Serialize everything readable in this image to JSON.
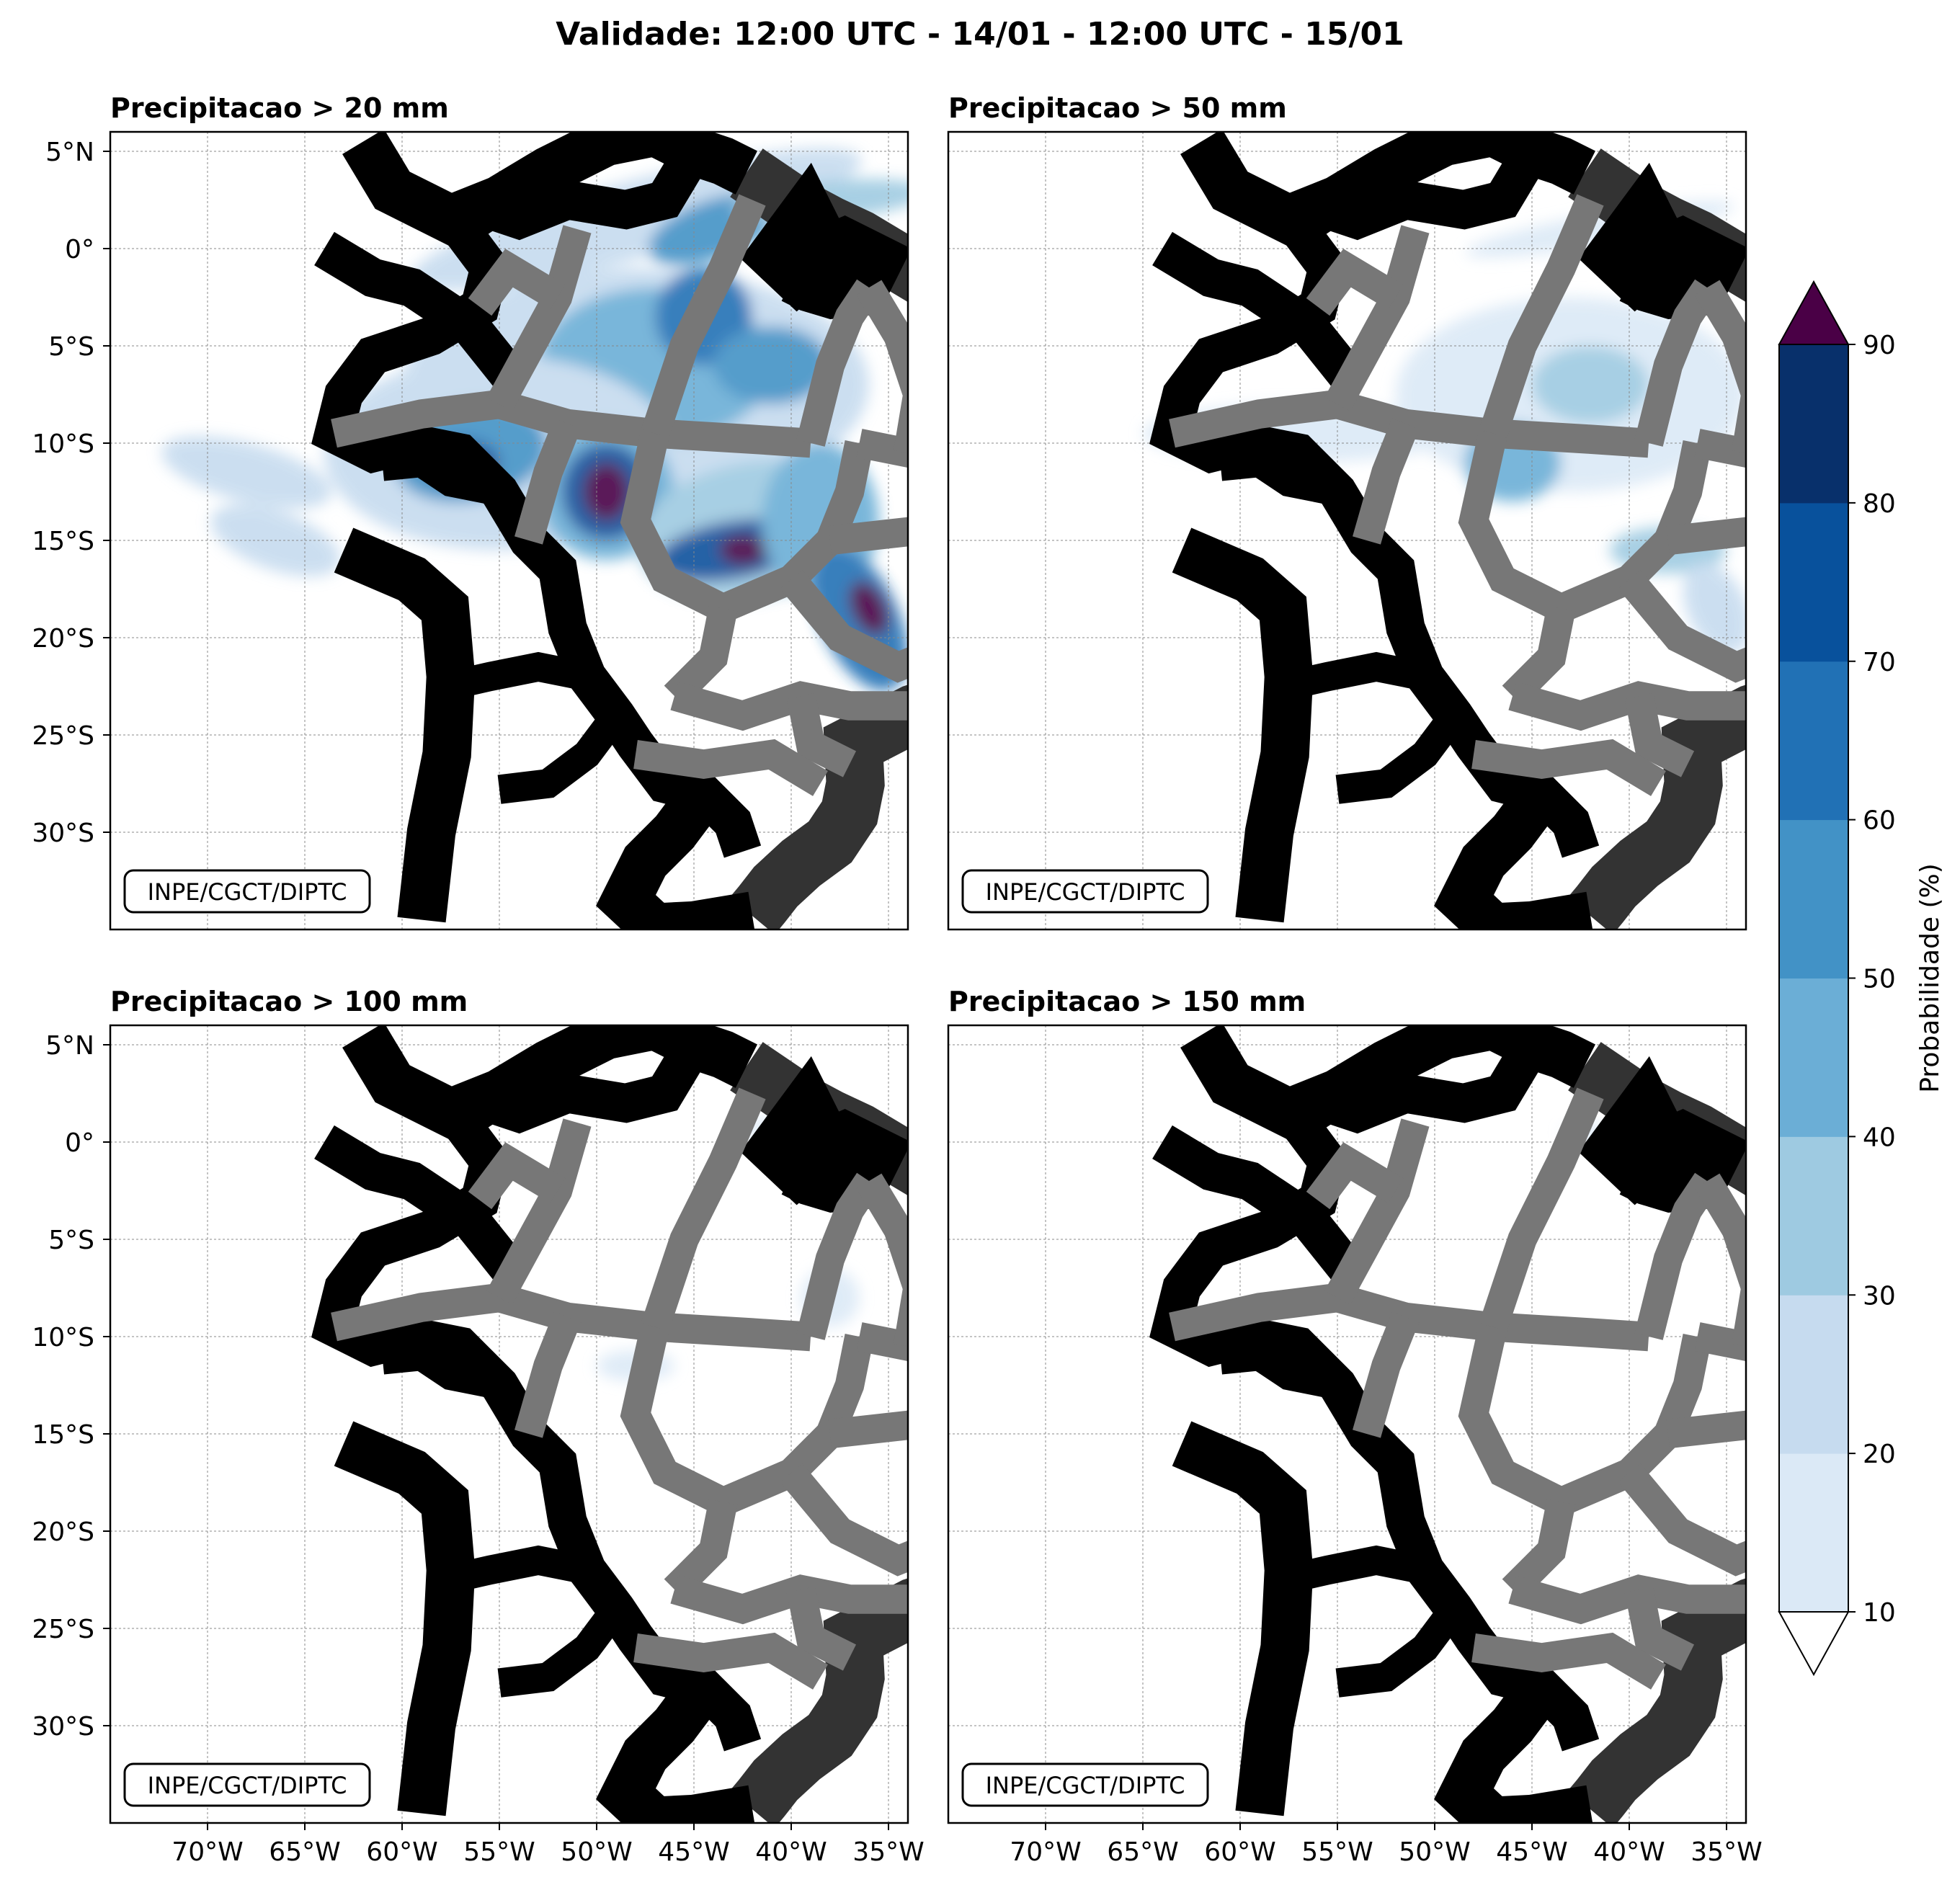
{
  "suptitle": "Validade: 12:00 UTC - 14/01 - 12:00 UTC - 15/01",
  "watermark": "INPE/CGCT/DIPTC",
  "lat_ticks": [
    "5°N",
    "0°",
    "5°S",
    "10°S",
    "15°S",
    "20°S",
    "25°S",
    "30°S"
  ],
  "lon_ticks": [
    "70°W",
    "65°W",
    "60°W",
    "55°W",
    "50°W",
    "45°W",
    "40°W",
    "35°W"
  ],
  "lon_range": [
    -75,
    -34
  ],
  "lat_range": [
    -35,
    6
  ],
  "panels": [
    {
      "title": "Precipitacao > 20 mm"
    },
    {
      "title": "Precipitacao > 50 mm"
    },
    {
      "title": "Precipitacao > 100 mm"
    },
    {
      "title": "Precipitacao > 150 mm"
    }
  ],
  "colorbar": {
    "label": "Probabilidade (%)",
    "ticks": [
      "10",
      "20",
      "30",
      "40",
      "50",
      "60",
      "70",
      "80",
      "90"
    ],
    "colors": [
      "#dbe9f6",
      "#c6dbef",
      "#9ecae1",
      "#6baed6",
      "#4292c6",
      "#2171b5",
      "#08519c",
      "#08306b"
    ],
    "over_color": "#4a0046",
    "under_color": "#ffffff"
  },
  "chart_data": [
    {
      "type": "heatmap",
      "title": "Precipitacao > 20 mm",
      "units": "Probabilidade (%)",
      "lon_range": [
        -75,
        -34
      ],
      "lat_range": [
        -35,
        6
      ],
      "blobs": [
        {
          "lon": -48.0,
          "lat": 1.5,
          "rlon": 12.0,
          "rlat": 2.0,
          "rot": -15,
          "v": 22
        },
        {
          "lon": -44.0,
          "lat": 1.0,
          "rlon": 3.5,
          "rlat": 1.5,
          "rot": -20,
          "v": 55
        },
        {
          "lon": -38.0,
          "lat": 2.5,
          "rlon": 5.0,
          "rlat": 1.0,
          "rot": -5,
          "v": 30
        },
        {
          "lon": -48.0,
          "lat": -7.0,
          "rlon": 12.0,
          "rlat": 6.0,
          "rot": 0,
          "v": 25
        },
        {
          "lon": -47.0,
          "lat": -6.0,
          "rlon": 6.0,
          "rlat": 4.0,
          "rot": 0,
          "v": 45
        },
        {
          "lon": -44.5,
          "lat": -3.5,
          "rlon": 2.5,
          "rlat": 2.5,
          "rot": 0,
          "v": 65
        },
        {
          "lon": -41.0,
          "lat": -6.0,
          "rlon": 3.0,
          "rlat": 2.0,
          "rot": 0,
          "v": 55
        },
        {
          "lon": -55.0,
          "lat": -10.5,
          "rlon": 9.0,
          "rlat": 5.0,
          "rot": 0,
          "v": 25
        },
        {
          "lon": -56.5,
          "lat": -10.5,
          "rlon": 4.0,
          "rlat": 2.5,
          "rot": -10,
          "v": 55
        },
        {
          "lon": -57.0,
          "lat": -11.0,
          "rlon": 2.0,
          "rlat": 1.2,
          "rot": 0,
          "v": 75
        },
        {
          "lon": -56.0,
          "lat": -11.5,
          "rlon": 0.8,
          "rlat": 0.6,
          "rot": 0,
          "v": 92
        },
        {
          "lon": -68.0,
          "lat": -11.5,
          "rlon": 4.5,
          "rlat": 1.5,
          "rot": 15,
          "v": 22
        },
        {
          "lon": -66.5,
          "lat": -15.0,
          "rlon": 3.5,
          "rlat": 1.5,
          "rot": 20,
          "v": 22
        },
        {
          "lon": -49.5,
          "lat": -12.5,
          "rlon": 3.5,
          "rlat": 3.5,
          "rot": 0,
          "v": 45
        },
        {
          "lon": -49.5,
          "lat": -12.5,
          "rlon": 2.3,
          "rlat": 2.5,
          "rot": 0,
          "v": 75
        },
        {
          "lon": -49.5,
          "lat": -12.5,
          "rlon": 1.2,
          "rlat": 1.5,
          "rot": 0,
          "v": 92
        },
        {
          "lon": -42.0,
          "lat": -14.5,
          "rlon": 6.0,
          "rlat": 3.5,
          "rot": -10,
          "v": 35
        },
        {
          "lon": -43.0,
          "lat": -15.5,
          "rlon": 4.0,
          "rlat": 1.5,
          "rot": -10,
          "v": 75
        },
        {
          "lon": -42.5,
          "lat": -15.5,
          "rlon": 1.2,
          "rlat": 0.8,
          "rot": 0,
          "v": 92
        },
        {
          "lon": -38.5,
          "lat": -14.0,
          "rlon": 3.0,
          "rlat": 4.0,
          "rot": 0,
          "v": 45
        },
        {
          "lon": -36.5,
          "lat": -19.0,
          "rlon": 2.0,
          "rlat": 4.0,
          "rot": -25,
          "v": 65
        },
        {
          "lon": -36.0,
          "lat": -18.5,
          "rlon": 0.9,
          "rlat": 1.5,
          "rot": -25,
          "v": 92
        }
      ]
    },
    {
      "type": "heatmap",
      "title": "Precipitacao > 50 mm",
      "units": "Probabilidade (%)",
      "lon_range": [
        -75,
        -34
      ],
      "lat_range": [
        -35,
        6
      ],
      "blobs": [
        {
          "lon": -43.0,
          "lat": -7.5,
          "rlon": 9.0,
          "rlat": 5.0,
          "rot": 0,
          "v": 15
        },
        {
          "lon": -46.0,
          "lat": -11.0,
          "rlon": 2.5,
          "rlat": 2.0,
          "rot": 0,
          "v": 45
        },
        {
          "lon": -42.0,
          "lat": -7.0,
          "rlon": 3.0,
          "rlat": 2.0,
          "rot": 0,
          "v": 30
        },
        {
          "lon": -57.0,
          "lat": -9.5,
          "rlon": 8.0,
          "rlat": 1.5,
          "rot": 0,
          "v": 12
        },
        {
          "lon": -41.5,
          "lat": 1.0,
          "rlon": 7.0,
          "rlat": 0.8,
          "rot": -10,
          "v": 18
        },
        {
          "lon": -38.0,
          "lat": -15.5,
          "rlon": 3.0,
          "rlat": 1.2,
          "rot": 0,
          "v": 35
        },
        {
          "lon": -35.5,
          "lat": -18.5,
          "rlon": 1.5,
          "rlat": 2.5,
          "rot": -25,
          "v": 25
        }
      ]
    },
    {
      "type": "heatmap",
      "title": "Precipitacao > 100 mm",
      "units": "Probabilidade (%)",
      "lon_range": [
        -75,
        -34
      ],
      "lat_range": [
        -35,
        6
      ],
      "blobs": [
        {
          "lon": -40.0,
          "lat": 1.0,
          "rlon": 3.0,
          "rlat": 0.5,
          "rot": -10,
          "v": 15
        },
        {
          "lon": -48.0,
          "lat": -11.5,
          "rlon": 2.0,
          "rlat": 0.8,
          "rot": 0,
          "v": 15
        },
        {
          "lon": -38.0,
          "lat": -8.0,
          "rlon": 1.5,
          "rlat": 1.5,
          "rot": 0,
          "v": 12
        }
      ]
    },
    {
      "type": "heatmap",
      "title": "Precipitacao > 150 mm",
      "units": "Probabilidade (%)",
      "lon_range": [
        -75,
        -34
      ],
      "lat_range": [
        -35,
        6
      ],
      "blobs": [
        {
          "lon": -42.0,
          "lat": 0.5,
          "rlon": 1.5,
          "rlat": 0.4,
          "rot": 0,
          "v": 12
        }
      ]
    }
  ]
}
